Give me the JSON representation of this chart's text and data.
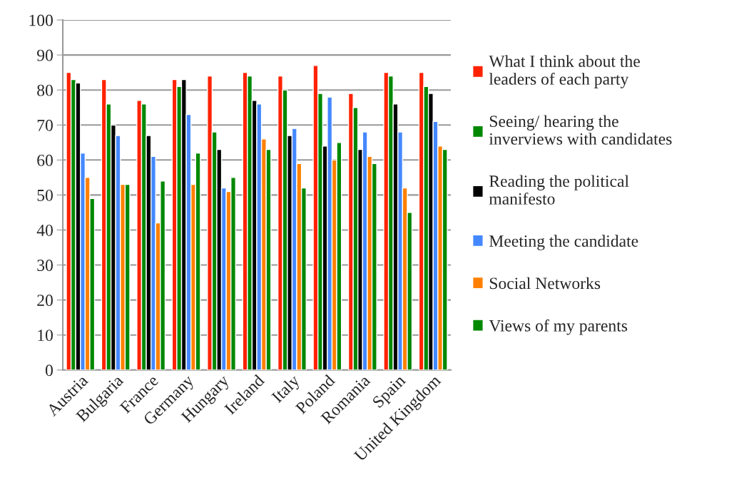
{
  "chart_data": {
    "type": "bar",
    "categories": [
      "Austria",
      "Bulgaria",
      "France",
      "Germany",
      "Hungary",
      "Ireland",
      "Italy",
      "Poland",
      "Romania",
      "Spain",
      "United Kingdom"
    ],
    "series": [
      {
        "name": "What I think about the\nleaders of each party",
        "color": "#ff2200",
        "values": [
          85,
          83,
          77,
          83,
          84,
          85,
          84,
          87,
          79,
          85,
          85
        ]
      },
      {
        "name": "Seeing/ hearing the\ninverviews with candidates",
        "color": "#008800",
        "values": [
          83,
          76,
          76,
          81,
          68,
          84,
          80,
          79,
          75,
          84,
          81
        ]
      },
      {
        "name": "Reading the political\nmanifesto",
        "color": "#000000",
        "values": [
          82,
          70,
          67,
          83,
          63,
          77,
          67,
          64,
          63,
          76,
          79
        ]
      },
      {
        "name": "Meeting the candidate",
        "color": "#4488ff",
        "values": [
          62,
          67,
          61,
          73,
          52,
          76,
          69,
          78,
          68,
          68,
          71
        ]
      },
      {
        "name": "Social Networks",
        "color": "#ff8000",
        "values": [
          55,
          53,
          42,
          53,
          51,
          66,
          59,
          60,
          61,
          52,
          64
        ]
      },
      {
        "name": "Views of my parents",
        "color": "#008800",
        "values": [
          49,
          53,
          54,
          62,
          55,
          63,
          52,
          65,
          59,
          45,
          63
        ]
      }
    ],
    "ylim": [
      0,
      100
    ],
    "yticks": [
      0,
      10,
      20,
      30,
      40,
      50,
      60,
      70,
      80,
      90,
      100
    ],
    "grid": "y",
    "legend": "right"
  }
}
